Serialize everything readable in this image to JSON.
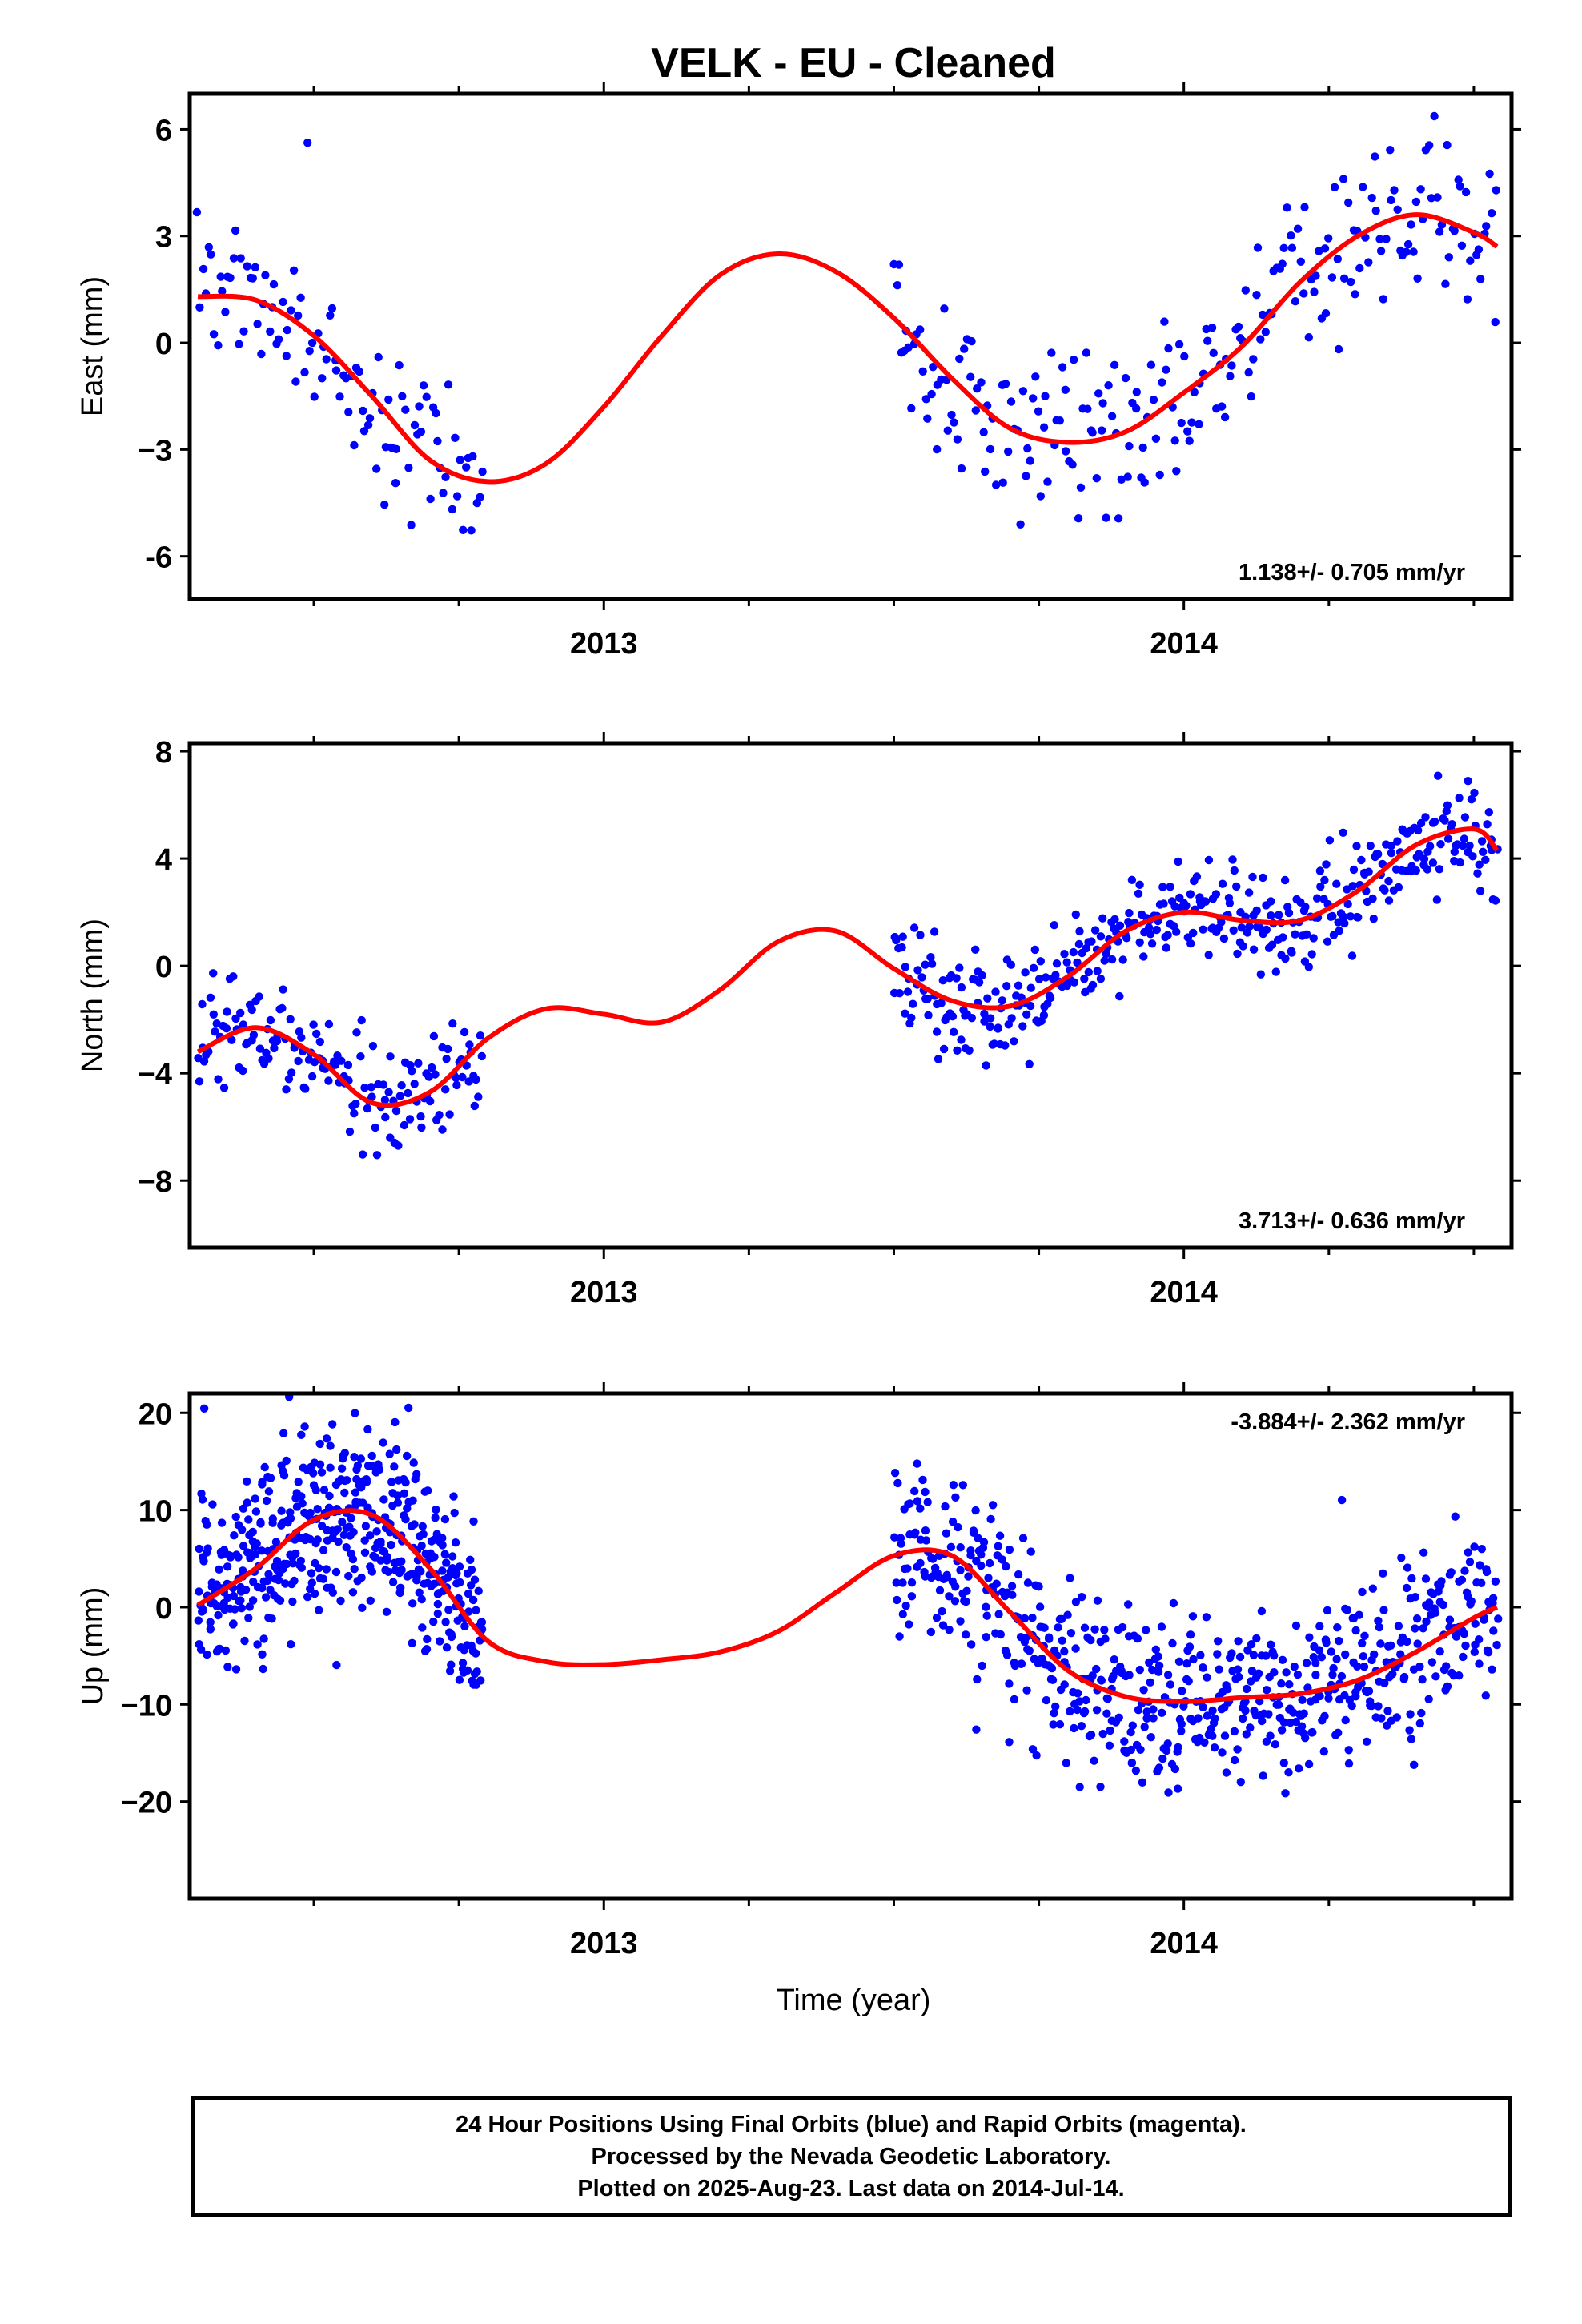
{
  "title": "VELK  - EU - Cleaned",
  "xlabel": "Time (year)",
  "colors": {
    "final_orbits": "#0000ff",
    "fit": "#ff0000",
    "axes": "#000000"
  },
  "footer": {
    "line1": "24 Hour Positions Using Final Orbits (blue) and Rapid Orbits (magenta).",
    "line2": "Processed by the Nevada Geodetic Laboratory.",
    "line3": "Plotted on 2025-Aug-23. Last data on 2014-Jul-14."
  },
  "chart_data": [
    {
      "type": "scatter",
      "ylabel": "East (mm)",
      "xlim": [
        2012.286,
        2014.565
      ],
      "ylim": [
        -7.2,
        7.0
      ],
      "yticks": [
        6,
        3,
        0,
        -3,
        -6
      ],
      "ytick_labels": [
        "6",
        "3",
        "0",
        "−3",
        "-6"
      ],
      "xticks": [
        2013,
        2014
      ],
      "xtick_labels": [
        "2013",
        "2014"
      ],
      "rate_label": "1.138+/- 0.705 mm/yr",
      "rate_label_position": "bottom-right",
      "noise": 1.1,
      "segments": [
        [
          2012.3,
          2012.79,
          15
        ],
        [
          2013.5,
          2014.54,
          33
        ]
      ],
      "fit_curve": {
        "x": [
          2012.3,
          2012.4,
          2012.5,
          2012.6,
          2012.7,
          2012.8,
          2012.9,
          2013.0,
          2013.1,
          2013.2,
          2013.3,
          2013.4,
          2013.5,
          2013.6,
          2013.7,
          2013.8,
          2013.9,
          2014.0,
          2014.1,
          2014.2,
          2014.3,
          2014.4,
          2014.5,
          2014.54
        ],
        "y": [
          1.3,
          1.2,
          0.2,
          -1.5,
          -3.3,
          -3.9,
          -3.4,
          -1.8,
          0.2,
          1.9,
          2.5,
          2.0,
          0.7,
          -1.0,
          -2.4,
          -2.8,
          -2.5,
          -1.4,
          -0.1,
          1.7,
          3.0,
          3.6,
          3.1,
          2.7
        ]
      }
    },
    {
      "type": "scatter",
      "ylabel": "North (mm)",
      "xlim": [
        2012.286,
        2014.565
      ],
      "ylim": [
        -10.5,
        8.3
      ],
      "yticks": [
        8,
        4,
        0,
        -4,
        -8
      ],
      "ytick_labels": [
        "8",
        "4",
        "0",
        "−4",
        "−8"
      ],
      "xticks": [
        2013,
        2014
      ],
      "xtick_labels": [
        "2013",
        "2014"
      ],
      "rate_label": "3.713+/- 0.636 mm/yr",
      "rate_label_position": "bottom-right",
      "noise": 0.95,
      "segments": [
        [
          2012.3,
          2012.79,
          23
        ],
        [
          2013.5,
          2014.54,
          57
        ]
      ],
      "fit_curve": {
        "x": [
          2012.3,
          2012.4,
          2012.5,
          2012.6,
          2012.7,
          2012.8,
          2012.9,
          2013.0,
          2013.1,
          2013.2,
          2013.3,
          2013.4,
          2013.5,
          2013.6,
          2013.7,
          2013.8,
          2013.9,
          2014.0,
          2014.1,
          2014.2,
          2014.3,
          2014.4,
          2014.5,
          2014.54
        ],
        "y": [
          -3.2,
          -2.3,
          -3.3,
          -5.1,
          -4.7,
          -2.7,
          -1.6,
          -1.8,
          -2.1,
          -0.9,
          0.9,
          1.3,
          -0.1,
          -1.3,
          -1.5,
          -0.4,
          1.3,
          2.0,
          1.7,
          1.7,
          2.8,
          4.5,
          5.1,
          4.3
        ]
      }
    },
    {
      "type": "scatter",
      "ylabel": "Up (mm)",
      "xlim": [
        2012.286,
        2014.565
      ],
      "ylim": [
        -30,
        22
      ],
      "yticks": [
        20,
        10,
        0,
        -10,
        -20
      ],
      "ytick_labels": [
        "20",
        "10",
        "0",
        "−10",
        "−20"
      ],
      "xticks": [
        2013,
        2014
      ],
      "xtick_labels": [
        "2013",
        "2014"
      ],
      "rate_label": "-3.884+/- 2.362 mm/yr",
      "rate_label_position": "top-right",
      "noise": 4.3,
      "segments": [
        [
          2012.3,
          2012.79,
          70
        ],
        [
          2013.5,
          2014.54,
          91
        ]
      ],
      "fit_curve": {
        "x": [
          2012.3,
          2012.4,
          2012.5,
          2012.6,
          2012.7,
          2012.8,
          2012.9,
          2013.0,
          2013.1,
          2013.2,
          2013.3,
          2013.4,
          2013.5,
          2013.6,
          2013.7,
          2013.8,
          2013.9,
          2014.0,
          2014.1,
          2014.2,
          2014.3,
          2014.4,
          2014.5,
          2014.54
        ],
        "y": [
          0.2,
          4.0,
          9.0,
          9.5,
          4.0,
          -3.5,
          -5.6,
          -5.9,
          -5.4,
          -4.6,
          -2.5,
          1.5,
          5.3,
          5.3,
          -0.5,
          -6.5,
          -9.2,
          -9.7,
          -9.3,
          -8.9,
          -7.5,
          -4.6,
          -1.1,
          0.0
        ]
      }
    }
  ]
}
